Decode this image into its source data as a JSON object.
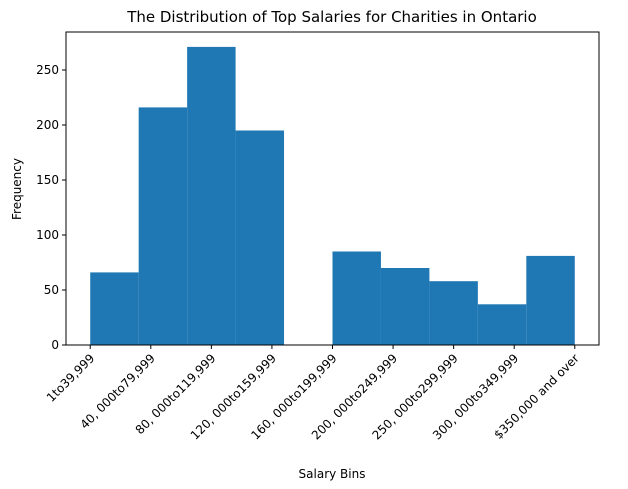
{
  "chart_data": {
    "type": "bar",
    "title": "The Distribution of Top Salaries for Charities in Ontario",
    "xlabel": "Salary Bins",
    "ylabel": "Frequency",
    "categories": [
      "1to39,999",
      "40,000to79,999",
      "80,000to119,999",
      "120,000to159,999",
      "160,000to199,999",
      "200,000to249,999",
      "250,000to299,999",
      "300,000to349,999",
      "$350,000 and over"
    ],
    "tick_labels": [
      "1to39,999",
      "40, 000to79,999",
      "80, 000to119,999",
      "120, 000to159,999",
      "160, 000to199,999",
      "200, 000to249,999",
      "250, 000to299,999",
      "300, 000to349,999",
      "$350,000 and over"
    ],
    "bin_range": [
      0,
      8
    ],
    "bin_count": 10,
    "bins": [
      {
        "start": 0.0,
        "end": 0.8,
        "value": 66
      },
      {
        "start": 0.8,
        "end": 1.6,
        "value": 216
      },
      {
        "start": 1.6,
        "end": 2.4,
        "value": 271
      },
      {
        "start": 2.4,
        "end": 3.2,
        "value": 195
      },
      {
        "start": 3.2,
        "end": 4.0,
        "value": 0
      },
      {
        "start": 4.0,
        "end": 4.8,
        "value": 85
      },
      {
        "start": 4.8,
        "end": 5.6,
        "value": 70
      },
      {
        "start": 5.6,
        "end": 6.4,
        "value": 58
      },
      {
        "start": 6.4,
        "end": 7.2,
        "value": 37
      },
      {
        "start": 7.2,
        "end": 8.0,
        "value": 81
      }
    ],
    "yticks": [
      0,
      50,
      100,
      150,
      200,
      250
    ],
    "ylim": [
      0,
      284.55
    ],
    "xlim": [
      -0.4,
      8.4
    ],
    "grid": false,
    "bar_color": "#1f77b4"
  }
}
